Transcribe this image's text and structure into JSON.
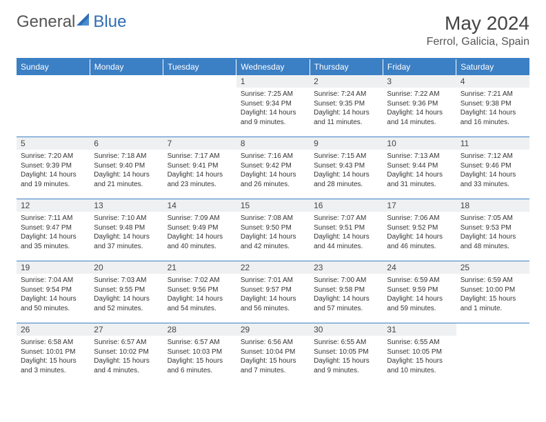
{
  "brand": {
    "part1": "General",
    "part2": "Blue"
  },
  "title": "May 2024",
  "location": "Ferrol, Galicia, Spain",
  "colors": {
    "header_bg": "#3b7fc4",
    "header_text": "#ffffff",
    "daynum_bg": "#eef0f1",
    "text": "#333333",
    "border": "#3b7fc4"
  },
  "daynames": [
    "Sunday",
    "Monday",
    "Tuesday",
    "Wednesday",
    "Thursday",
    "Friday",
    "Saturday"
  ],
  "weeks": [
    [
      null,
      null,
      null,
      {
        "n": "1",
        "sr": "7:25 AM",
        "ss": "9:34 PM",
        "dl": "14 hours and 9 minutes."
      },
      {
        "n": "2",
        "sr": "7:24 AM",
        "ss": "9:35 PM",
        "dl": "14 hours and 11 minutes."
      },
      {
        "n": "3",
        "sr": "7:22 AM",
        "ss": "9:36 PM",
        "dl": "14 hours and 14 minutes."
      },
      {
        "n": "4",
        "sr": "7:21 AM",
        "ss": "9:38 PM",
        "dl": "14 hours and 16 minutes."
      }
    ],
    [
      {
        "n": "5",
        "sr": "7:20 AM",
        "ss": "9:39 PM",
        "dl": "14 hours and 19 minutes."
      },
      {
        "n": "6",
        "sr": "7:18 AM",
        "ss": "9:40 PM",
        "dl": "14 hours and 21 minutes."
      },
      {
        "n": "7",
        "sr": "7:17 AM",
        "ss": "9:41 PM",
        "dl": "14 hours and 23 minutes."
      },
      {
        "n": "8",
        "sr": "7:16 AM",
        "ss": "9:42 PM",
        "dl": "14 hours and 26 minutes."
      },
      {
        "n": "9",
        "sr": "7:15 AM",
        "ss": "9:43 PM",
        "dl": "14 hours and 28 minutes."
      },
      {
        "n": "10",
        "sr": "7:13 AM",
        "ss": "9:44 PM",
        "dl": "14 hours and 31 minutes."
      },
      {
        "n": "11",
        "sr": "7:12 AM",
        "ss": "9:46 PM",
        "dl": "14 hours and 33 minutes."
      }
    ],
    [
      {
        "n": "12",
        "sr": "7:11 AM",
        "ss": "9:47 PM",
        "dl": "14 hours and 35 minutes."
      },
      {
        "n": "13",
        "sr": "7:10 AM",
        "ss": "9:48 PM",
        "dl": "14 hours and 37 minutes."
      },
      {
        "n": "14",
        "sr": "7:09 AM",
        "ss": "9:49 PM",
        "dl": "14 hours and 40 minutes."
      },
      {
        "n": "15",
        "sr": "7:08 AM",
        "ss": "9:50 PM",
        "dl": "14 hours and 42 minutes."
      },
      {
        "n": "16",
        "sr": "7:07 AM",
        "ss": "9:51 PM",
        "dl": "14 hours and 44 minutes."
      },
      {
        "n": "17",
        "sr": "7:06 AM",
        "ss": "9:52 PM",
        "dl": "14 hours and 46 minutes."
      },
      {
        "n": "18",
        "sr": "7:05 AM",
        "ss": "9:53 PM",
        "dl": "14 hours and 48 minutes."
      }
    ],
    [
      {
        "n": "19",
        "sr": "7:04 AM",
        "ss": "9:54 PM",
        "dl": "14 hours and 50 minutes."
      },
      {
        "n": "20",
        "sr": "7:03 AM",
        "ss": "9:55 PM",
        "dl": "14 hours and 52 minutes."
      },
      {
        "n": "21",
        "sr": "7:02 AM",
        "ss": "9:56 PM",
        "dl": "14 hours and 54 minutes."
      },
      {
        "n": "22",
        "sr": "7:01 AM",
        "ss": "9:57 PM",
        "dl": "14 hours and 56 minutes."
      },
      {
        "n": "23",
        "sr": "7:00 AM",
        "ss": "9:58 PM",
        "dl": "14 hours and 57 minutes."
      },
      {
        "n": "24",
        "sr": "6:59 AM",
        "ss": "9:59 PM",
        "dl": "14 hours and 59 minutes."
      },
      {
        "n": "25",
        "sr": "6:59 AM",
        "ss": "10:00 PM",
        "dl": "15 hours and 1 minute."
      }
    ],
    [
      {
        "n": "26",
        "sr": "6:58 AM",
        "ss": "10:01 PM",
        "dl": "15 hours and 3 minutes."
      },
      {
        "n": "27",
        "sr": "6:57 AM",
        "ss": "10:02 PM",
        "dl": "15 hours and 4 minutes."
      },
      {
        "n": "28",
        "sr": "6:57 AM",
        "ss": "10:03 PM",
        "dl": "15 hours and 6 minutes."
      },
      {
        "n": "29",
        "sr": "6:56 AM",
        "ss": "10:04 PM",
        "dl": "15 hours and 7 minutes."
      },
      {
        "n": "30",
        "sr": "6:55 AM",
        "ss": "10:05 PM",
        "dl": "15 hours and 9 minutes."
      },
      {
        "n": "31",
        "sr": "6:55 AM",
        "ss": "10:05 PM",
        "dl": "15 hours and 10 minutes."
      },
      null
    ]
  ],
  "labels": {
    "sunrise": "Sunrise:",
    "sunset": "Sunset:",
    "daylight": "Daylight:"
  }
}
